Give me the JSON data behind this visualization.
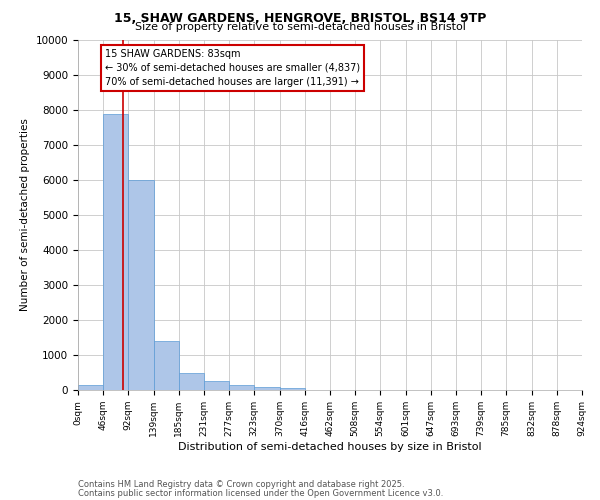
{
  "title1": "15, SHAW GARDENS, HENGROVE, BRISTOL, BS14 9TP",
  "title2": "Size of property relative to semi-detached houses in Bristol",
  "bar_values": [
    150,
    7900,
    6000,
    1400,
    500,
    250,
    150,
    100,
    50,
    5,
    2,
    1,
    0,
    0,
    0,
    0,
    0,
    0,
    0,
    0
  ],
  "bin_edges": [
    0,
    46,
    92,
    139,
    185,
    231,
    277,
    323,
    370,
    416,
    462,
    508,
    554,
    601,
    647,
    693,
    739,
    785,
    832,
    878,
    924
  ],
  "xlabel": "Distribution of semi-detached houses by size in Bristol",
  "ylabel": "Number of semi-detached properties",
  "bar_color": "#AEC6E8",
  "bar_edge_color": "#5B9BD5",
  "grid_color": "#C8C8C8",
  "bg_color": "#FFFFFF",
  "red_line_x": 83,
  "annotation_title": "15 SHAW GARDENS: 83sqm",
  "annotation_line1": "← 30% of semi-detached houses are smaller (4,837)",
  "annotation_line2": "70% of semi-detached houses are larger (11,391) →",
  "annotation_box_color": "#CC0000",
  "footer1": "Contains HM Land Registry data © Crown copyright and database right 2025.",
  "footer2": "Contains public sector information licensed under the Open Government Licence v3.0.",
  "ylim": [
    0,
    10000
  ],
  "yticks": [
    0,
    1000,
    2000,
    3000,
    4000,
    5000,
    6000,
    7000,
    8000,
    9000,
    10000
  ]
}
